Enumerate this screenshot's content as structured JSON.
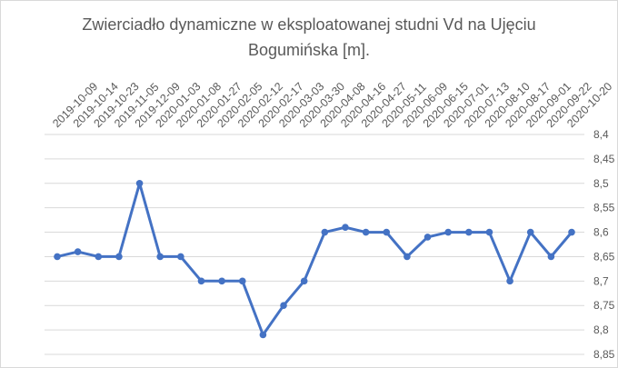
{
  "chart_data": {
    "type": "line",
    "title_line1": "Zwierciadło dynamiczne  w eksploatowanej studni Vd na Ujęciu",
    "title_line2": "Bogumińska [m].",
    "xlabel": "",
    "ylabel": "",
    "y_inverted": true,
    "ylim": [
      8.4,
      8.85
    ],
    "y_ticks": [
      "8,4",
      "8,45",
      "8,5",
      "8,55",
      "8,6",
      "8,65",
      "8,7",
      "8,75",
      "8,8",
      "8,85"
    ],
    "grid": true,
    "legend": "none",
    "line_color": "#4472C4",
    "categories": [
      "2019-10-09",
      "2019-10-14",
      "2019-10-23",
      "2019-11-05",
      "2019-12-09",
      "2020-01-03",
      "2020-01-08",
      "2020-01-27",
      "2020-02-05",
      "2020-02-12",
      "2020-02-17",
      "2020-03-03",
      "2020-03-30",
      "2020-04-08",
      "2020-04-16",
      "2020-04-27",
      "2020-05-11",
      "2020-06-09",
      "2020-06-15",
      "2020-07-01",
      "2020-07-13",
      "2020-08-10",
      "2020-08-17",
      "2020-09-01",
      "2020-09-22",
      "2020-10-20"
    ],
    "values": [
      8.65,
      8.64,
      8.65,
      8.65,
      8.5,
      8.65,
      8.65,
      8.7,
      8.7,
      8.7,
      8.81,
      8.75,
      8.7,
      8.6,
      8.59,
      8.6,
      8.6,
      8.65,
      8.61,
      8.6,
      8.6,
      8.6,
      8.7,
      8.6,
      8.65,
      8.6
    ]
  }
}
